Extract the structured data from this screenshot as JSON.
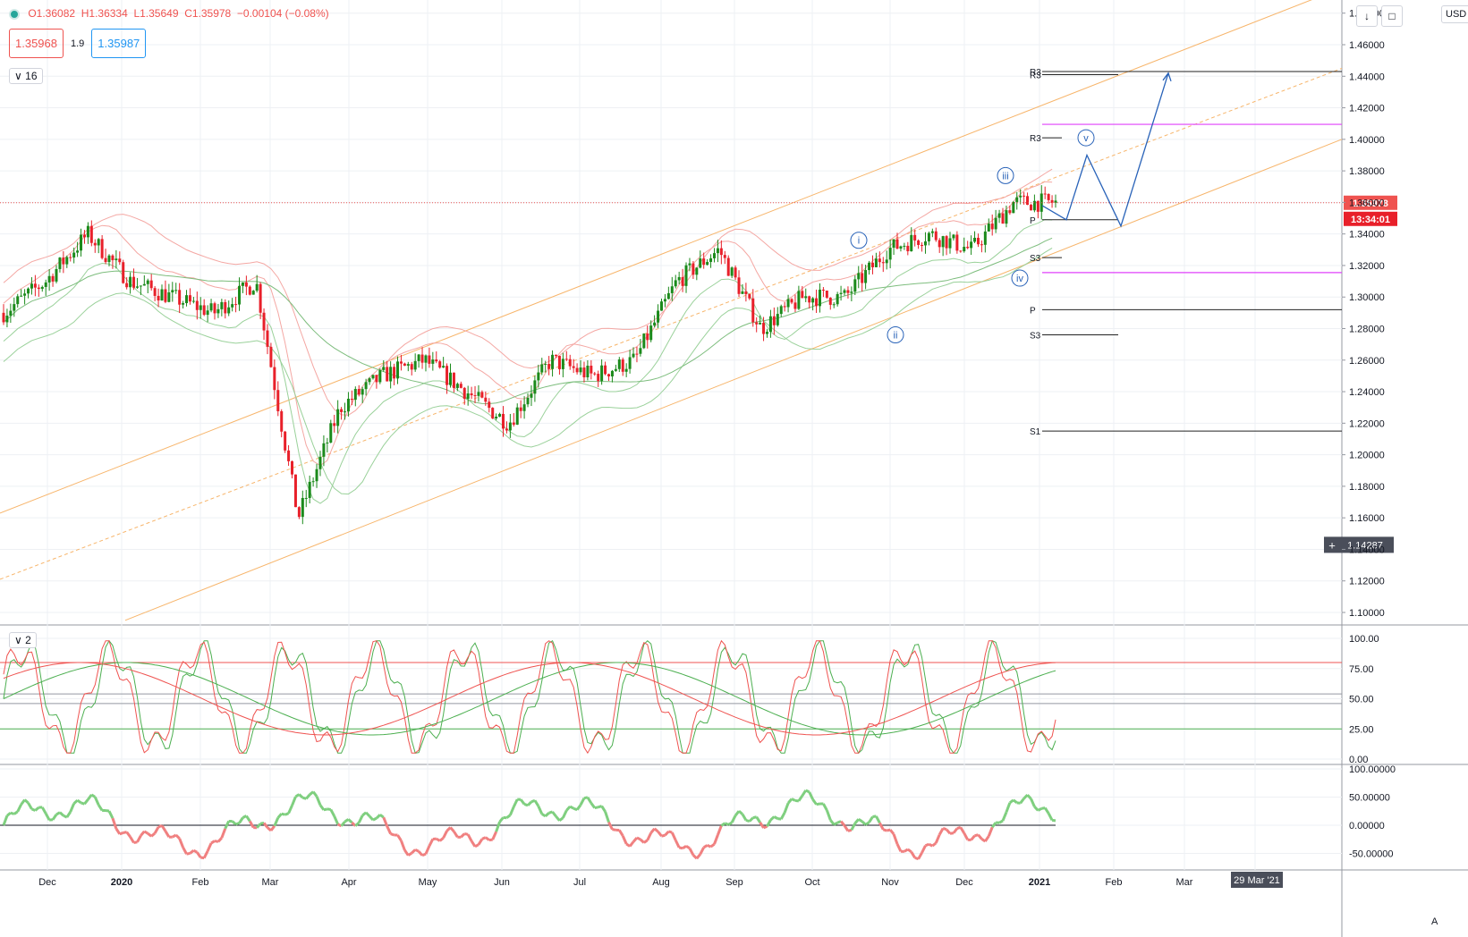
{
  "legend": {
    "open": "O1.36082",
    "high": "H1.36334",
    "low": "L1.35649",
    "close": "C1.35978",
    "change": "−0.00104 (−0.08%)",
    "sell_price": "1.35968",
    "spread": "1.9",
    "buy_price": "1.35987",
    "indicator_one": "16",
    "indicator_two": "2"
  },
  "toolbar": {
    "currency": "USD",
    "auto": "A"
  },
  "colors": {
    "up": "#1b8a1b",
    "down": "#e8202a",
    "channel": "#f7b56b",
    "band_upper": "#f4a7a3",
    "band_lower": "#9ad19a",
    "wave": "#2862b8",
    "level_magenta": "#e040fb",
    "level_black": "#222222",
    "price_line": "#ef5350"
  },
  "chart_data": [
    {
      "type": "line",
      "subtype": "candlestick-daily",
      "y_ticks": [
        "1.10000",
        "1.12000",
        "1.14000",
        "1.16000",
        "1.18000",
        "1.20000",
        "1.22000",
        "1.24000",
        "1.26000",
        "1.28000",
        "1.30000",
        "1.32000",
        "1.34000",
        "1.36000",
        "1.38000",
        "1.40000",
        "1.42000",
        "1.44000",
        "1.46000",
        "1.48000"
      ],
      "ylim": [
        1.09,
        1.49
      ],
      "x_labels": [
        "Dec",
        "2020",
        "Feb",
        "Mar",
        "Apr",
        "May",
        "Jun",
        "Jul",
        "Aug",
        "Sep",
        "Oct",
        "Nov",
        "Dec",
        "2021",
        "Feb",
        "Mar",
        "29 Mar '21"
      ],
      "current_price": "1.35978",
      "countdown": "13:34:01",
      "crosshair_price": "1.14287",
      "close_path": [
        {
          "x": "Nov 2019",
          "y": 1.29
        },
        {
          "x": "Dec 2019",
          "y": 1.31
        },
        {
          "x": "mid Dec 2019",
          "y": 1.34
        },
        {
          "x": "2020",
          "y": 1.31
        },
        {
          "x": "Feb 2020",
          "y": 1.3
        },
        {
          "x": "Mar 2020",
          "y": 1.29
        },
        {
          "x": "early Mar 2020",
          "y": 1.31
        },
        {
          "x": "mid Mar 2020",
          "y": 1.16
        },
        {
          "x": "late Mar 2020",
          "y": 1.23
        },
        {
          "x": "Apr 2020",
          "y": 1.25
        },
        {
          "x": "mid Apr 2020",
          "y": 1.26
        },
        {
          "x": "May 2020",
          "y": 1.24
        },
        {
          "x": "mid May 2020",
          "y": 1.22
        },
        {
          "x": "Jun 2020",
          "y": 1.26
        },
        {
          "x": "mid Jun 2020",
          "y": 1.25
        },
        {
          "x": "Jul 2020",
          "y": 1.26
        },
        {
          "x": "Aug 2020",
          "y": 1.31
        },
        {
          "x": "Sep 2020",
          "y": 1.33
        },
        {
          "x": "mid Sep 2020",
          "y": 1.28
        },
        {
          "x": "Oct 2020",
          "y": 1.3
        },
        {
          "x": "Nov 2020",
          "y": 1.3
        },
        {
          "x": "mid Nov 2020",
          "y": 1.33
        },
        {
          "x": "Dec 2020",
          "y": 1.34
        },
        {
          "x": "mid Dec 2020",
          "y": 1.33
        },
        {
          "x": "late Dec 2020",
          "y": 1.36
        },
        {
          "x": "2021",
          "y": 1.36
        }
      ],
      "pivot_labels": [
        "R3",
        "R3",
        "R3",
        "P",
        "S3",
        "P",
        "S3",
        "S1"
      ],
      "pivot_levels": [
        1.443,
        1.441,
        1.401,
        1.349,
        1.325,
        1.292,
        1.276,
        1.215
      ],
      "magenta_levels": [
        1.4095,
        1.3155
      ],
      "wave_labels": [
        "i",
        "ii",
        "iii",
        "iv",
        "v"
      ]
    },
    {
      "type": "line",
      "name_visible": "2",
      "y_ticks": [
        "0.00",
        "25.00",
        "50.00",
        "75.00",
        "100.00"
      ],
      "ylim": [
        0,
        100
      ],
      "levels": [
        80,
        54,
        46,
        25
      ]
    },
    {
      "type": "line",
      "y_ticks": [
        "-50.00000",
        "0.00000",
        "50.00000",
        "100.00000"
      ],
      "ylim": [
        -65,
        105
      ]
    }
  ]
}
